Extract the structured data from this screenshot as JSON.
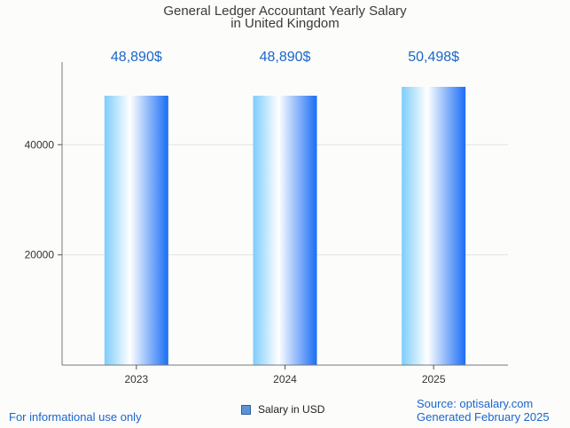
{
  "chart_data": {
    "type": "bar",
    "title_line1": "General Ledger Accountant Yearly Salary",
    "title_line2": "in United Kingdom",
    "categories": [
      "2023",
      "2024",
      "2025"
    ],
    "values": [
      48890,
      48890,
      50498
    ],
    "value_labels": [
      "48,890$",
      "48,890$",
      "50,498$"
    ],
    "yticks": [
      20000,
      40000
    ],
    "ylim": [
      0,
      55000
    ],
    "legend": "Salary in USD",
    "bar_color_light": "#ffffff",
    "bar_color_mid": "#7dcdfb",
    "bar_color_dark": "#1a6ef5",
    "label_color": "#1a66cc"
  },
  "footer": {
    "left": "For informational use only",
    "source": "Source: optisalary.com",
    "generated": "Generated February 2025"
  }
}
